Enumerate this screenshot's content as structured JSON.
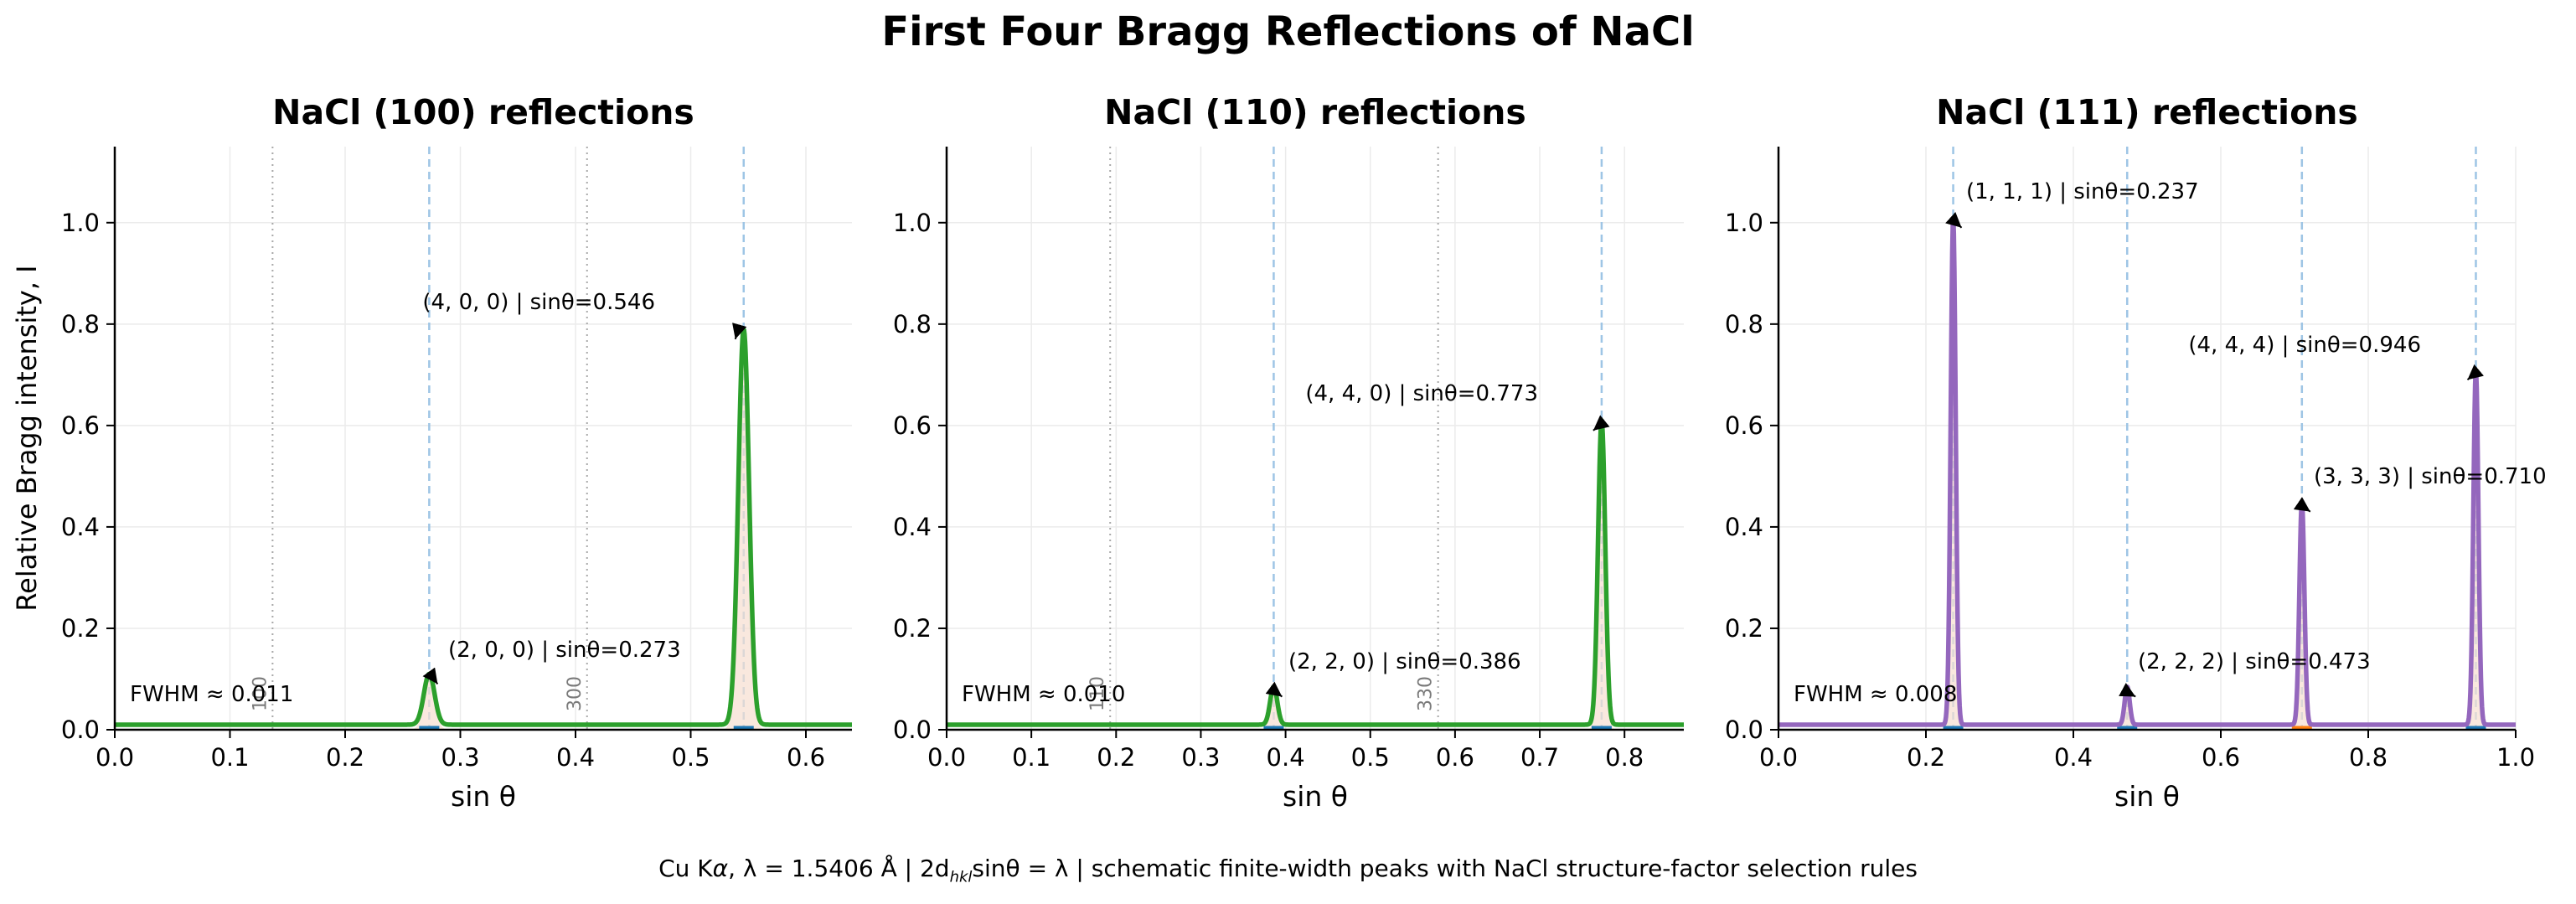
{
  "figure": {
    "title": "First Four Bragg Reflections of NaCl",
    "footer": {
      "prefix": "Cu K",
      "alpha": "α",
      "lambda_part": ", λ = 1.5406 Å  |  2d",
      "subscript": "hkl",
      "suffix": "sinθ = λ  |  schematic finite-width peaks with NaCl structure-factor selection rules"
    }
  },
  "chart_data": [
    {
      "type": "line",
      "title": "NaCl (100) reflections",
      "xlabel": "sin θ",
      "ylabel": "Relative Bragg intensity, I",
      "xlim": [
        0.0,
        0.64
      ],
      "ylim": [
        0.0,
        1.15
      ],
      "xticks": [
        "0.0",
        "0.1",
        "0.2",
        "0.3",
        "0.4",
        "0.5",
        "0.6"
      ],
      "yticks": [
        "0.0",
        "0.2",
        "0.4",
        "0.6",
        "0.8",
        "1.0"
      ],
      "grid": true,
      "fwhm_label": "FWHM ≈ 0.011",
      "fwhm": 0.011,
      "baseline": 0.01,
      "line_color": "#2ca02c",
      "allowed_lines": [
        0.273,
        0.546
      ],
      "forbidden_lines": [
        {
          "x": 0.137,
          "label": "100"
        },
        {
          "x": 0.41,
          "label": "300"
        }
      ],
      "series": [
        {
          "values": [
            {
              "x": 0.273,
              "y": 0.11
            },
            {
              "x": 0.546,
              "y": 0.79
            }
          ]
        }
      ],
      "peaks": [
        {
          "hkl": "(2, 0, 0)",
          "x": 0.273,
          "y": 0.11,
          "label": "(2, 0, 0)  |  sinθ=0.273"
        },
        {
          "hkl": "(4, 0, 0)",
          "x": 0.546,
          "y": 0.79,
          "label": "(4, 0, 0)  |  sinθ=0.546"
        }
      ]
    },
    {
      "type": "line",
      "title": "NaCl (110) reflections",
      "xlabel": "sin θ",
      "xlim": [
        0.0,
        0.87
      ],
      "ylim": [
        0.0,
        1.15
      ],
      "xticks": [
        "0.0",
        "0.1",
        "0.2",
        "0.3",
        "0.4",
        "0.5",
        "0.6",
        "0.7",
        "0.8"
      ],
      "yticks": [
        "0.0",
        "0.2",
        "0.4",
        "0.6",
        "0.8",
        "1.0"
      ],
      "grid": true,
      "fwhm_label": "FWHM ≈ 0.010",
      "fwhm": 0.01,
      "baseline": 0.01,
      "line_color": "#2ca02c",
      "allowed_lines": [
        0.386,
        0.773
      ],
      "forbidden_lines": [
        {
          "x": 0.193,
          "label": "110"
        },
        {
          "x": 0.58,
          "label": "330"
        }
      ],
      "series": [
        {
          "values": [
            {
              "x": 0.386,
              "y": 0.085
            },
            {
              "x": 0.773,
              "y": 0.61
            }
          ]
        }
      ],
      "peaks": [
        {
          "hkl": "(2, 2, 0)",
          "x": 0.386,
          "y": 0.085,
          "label": "(2, 2, 0)  |  sinθ=0.386"
        },
        {
          "hkl": "(4, 4, 0)",
          "x": 0.773,
          "y": 0.61,
          "label": "(4, 4, 0)  |  sinθ=0.773"
        }
      ]
    },
    {
      "type": "line",
      "title": "NaCl (111) reflections",
      "xlabel": "sin θ",
      "xlim": [
        0.0,
        1.0
      ],
      "ylim": [
        0.0,
        1.15
      ],
      "xticks": [
        "0.0",
        "0.2",
        "0.4",
        "0.6",
        "0.8",
        "1.0"
      ],
      "yticks": [
        "0.0",
        "0.2",
        "0.4",
        "0.6",
        "0.8",
        "1.0"
      ],
      "grid": true,
      "fwhm_label": "FWHM ≈ 0.008",
      "fwhm": 0.008,
      "baseline": 0.01,
      "line_color": "#9467bd",
      "allowed_lines": [
        0.237,
        0.473,
        0.71,
        0.946
      ],
      "forbidden_lines": [],
      "series": [
        {
          "values": [
            {
              "x": 0.237,
              "y": 1.01
            },
            {
              "x": 0.473,
              "y": 0.085
            },
            {
              "x": 0.71,
              "y": 0.45
            },
            {
              "x": 0.946,
              "y": 0.71
            }
          ]
        }
      ],
      "peaks": [
        {
          "hkl": "(1, 1, 1)",
          "x": 0.237,
          "y": 1.01,
          "label": "(1, 1, 1)  |  sinθ=0.237"
        },
        {
          "hkl": "(2, 2, 2)",
          "x": 0.473,
          "y": 0.085,
          "label": "(2, 2, 2)  |  sinθ=0.473"
        },
        {
          "hkl": "(3, 3, 3)",
          "x": 0.71,
          "y": 0.45,
          "label": "(3, 3, 3)  |  sinθ=0.710"
        },
        {
          "hkl": "(4, 4, 4)",
          "x": 0.946,
          "y": 0.71,
          "label": "(4, 4, 4)  |  sinθ=0.946"
        }
      ]
    }
  ]
}
